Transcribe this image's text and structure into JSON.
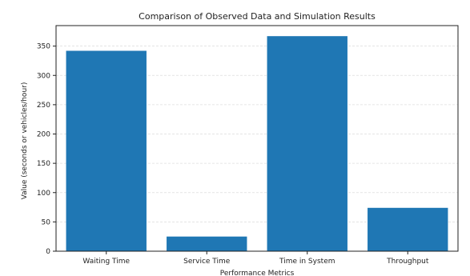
{
  "chart_data": {
    "type": "bar",
    "title": "Comparison of Observed Data and Simulation Results",
    "xlabel": "Performance Metrics",
    "ylabel": "Value (seconds or vehicles/hour)",
    "categories": [
      "Waiting Time",
      "Service Time",
      "Time in System",
      "Throughput"
    ],
    "values": [
      342,
      25,
      367,
      74
    ],
    "ylim": [
      0,
      385
    ],
    "yticks": [
      0,
      50,
      100,
      150,
      200,
      250,
      300,
      350
    ],
    "grid": true,
    "bar_color": "#1f77b4"
  }
}
